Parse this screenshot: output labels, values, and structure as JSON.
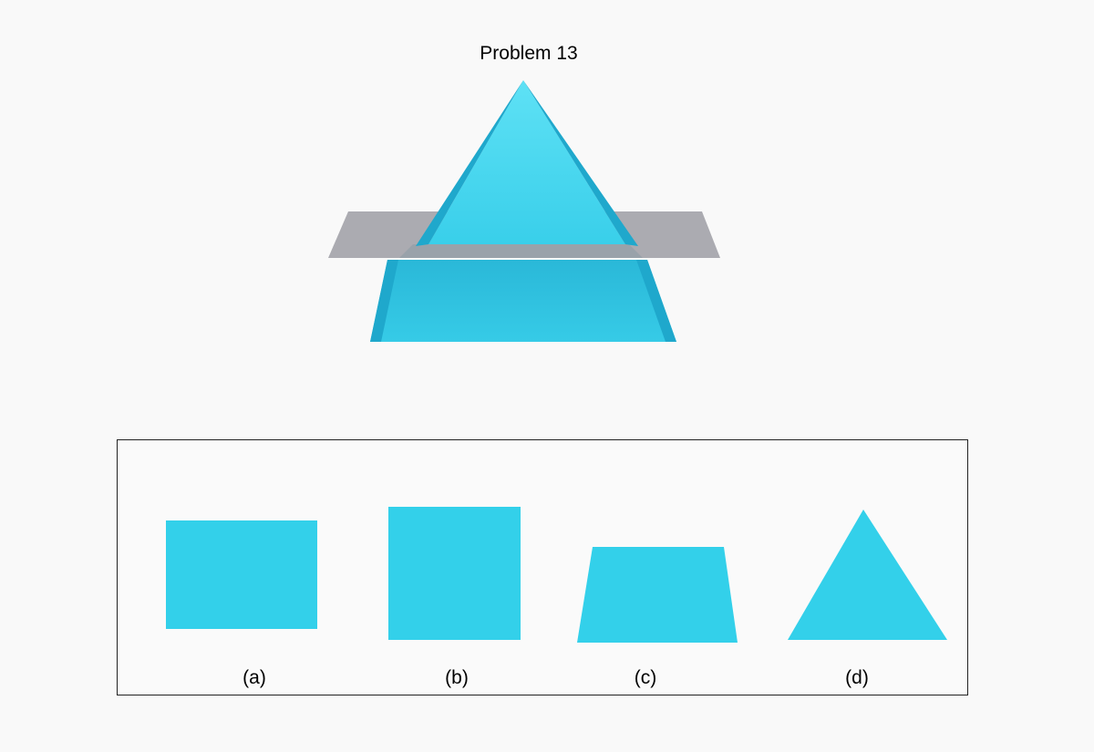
{
  "title": "Problem 13",
  "colors": {
    "solid": "#33d0ea",
    "solid_light": "#4ed8f0",
    "solid_dark": "#1fb0d2",
    "plane": "#a6a6ad",
    "background": "#f9f9f9"
  },
  "options": [
    {
      "label": "(a)",
      "shape": "rectangle"
    },
    {
      "label": "(b)",
      "shape": "square"
    },
    {
      "label": "(c)",
      "shape": "trapezoid"
    },
    {
      "label": "(d)",
      "shape": "triangle"
    }
  ]
}
